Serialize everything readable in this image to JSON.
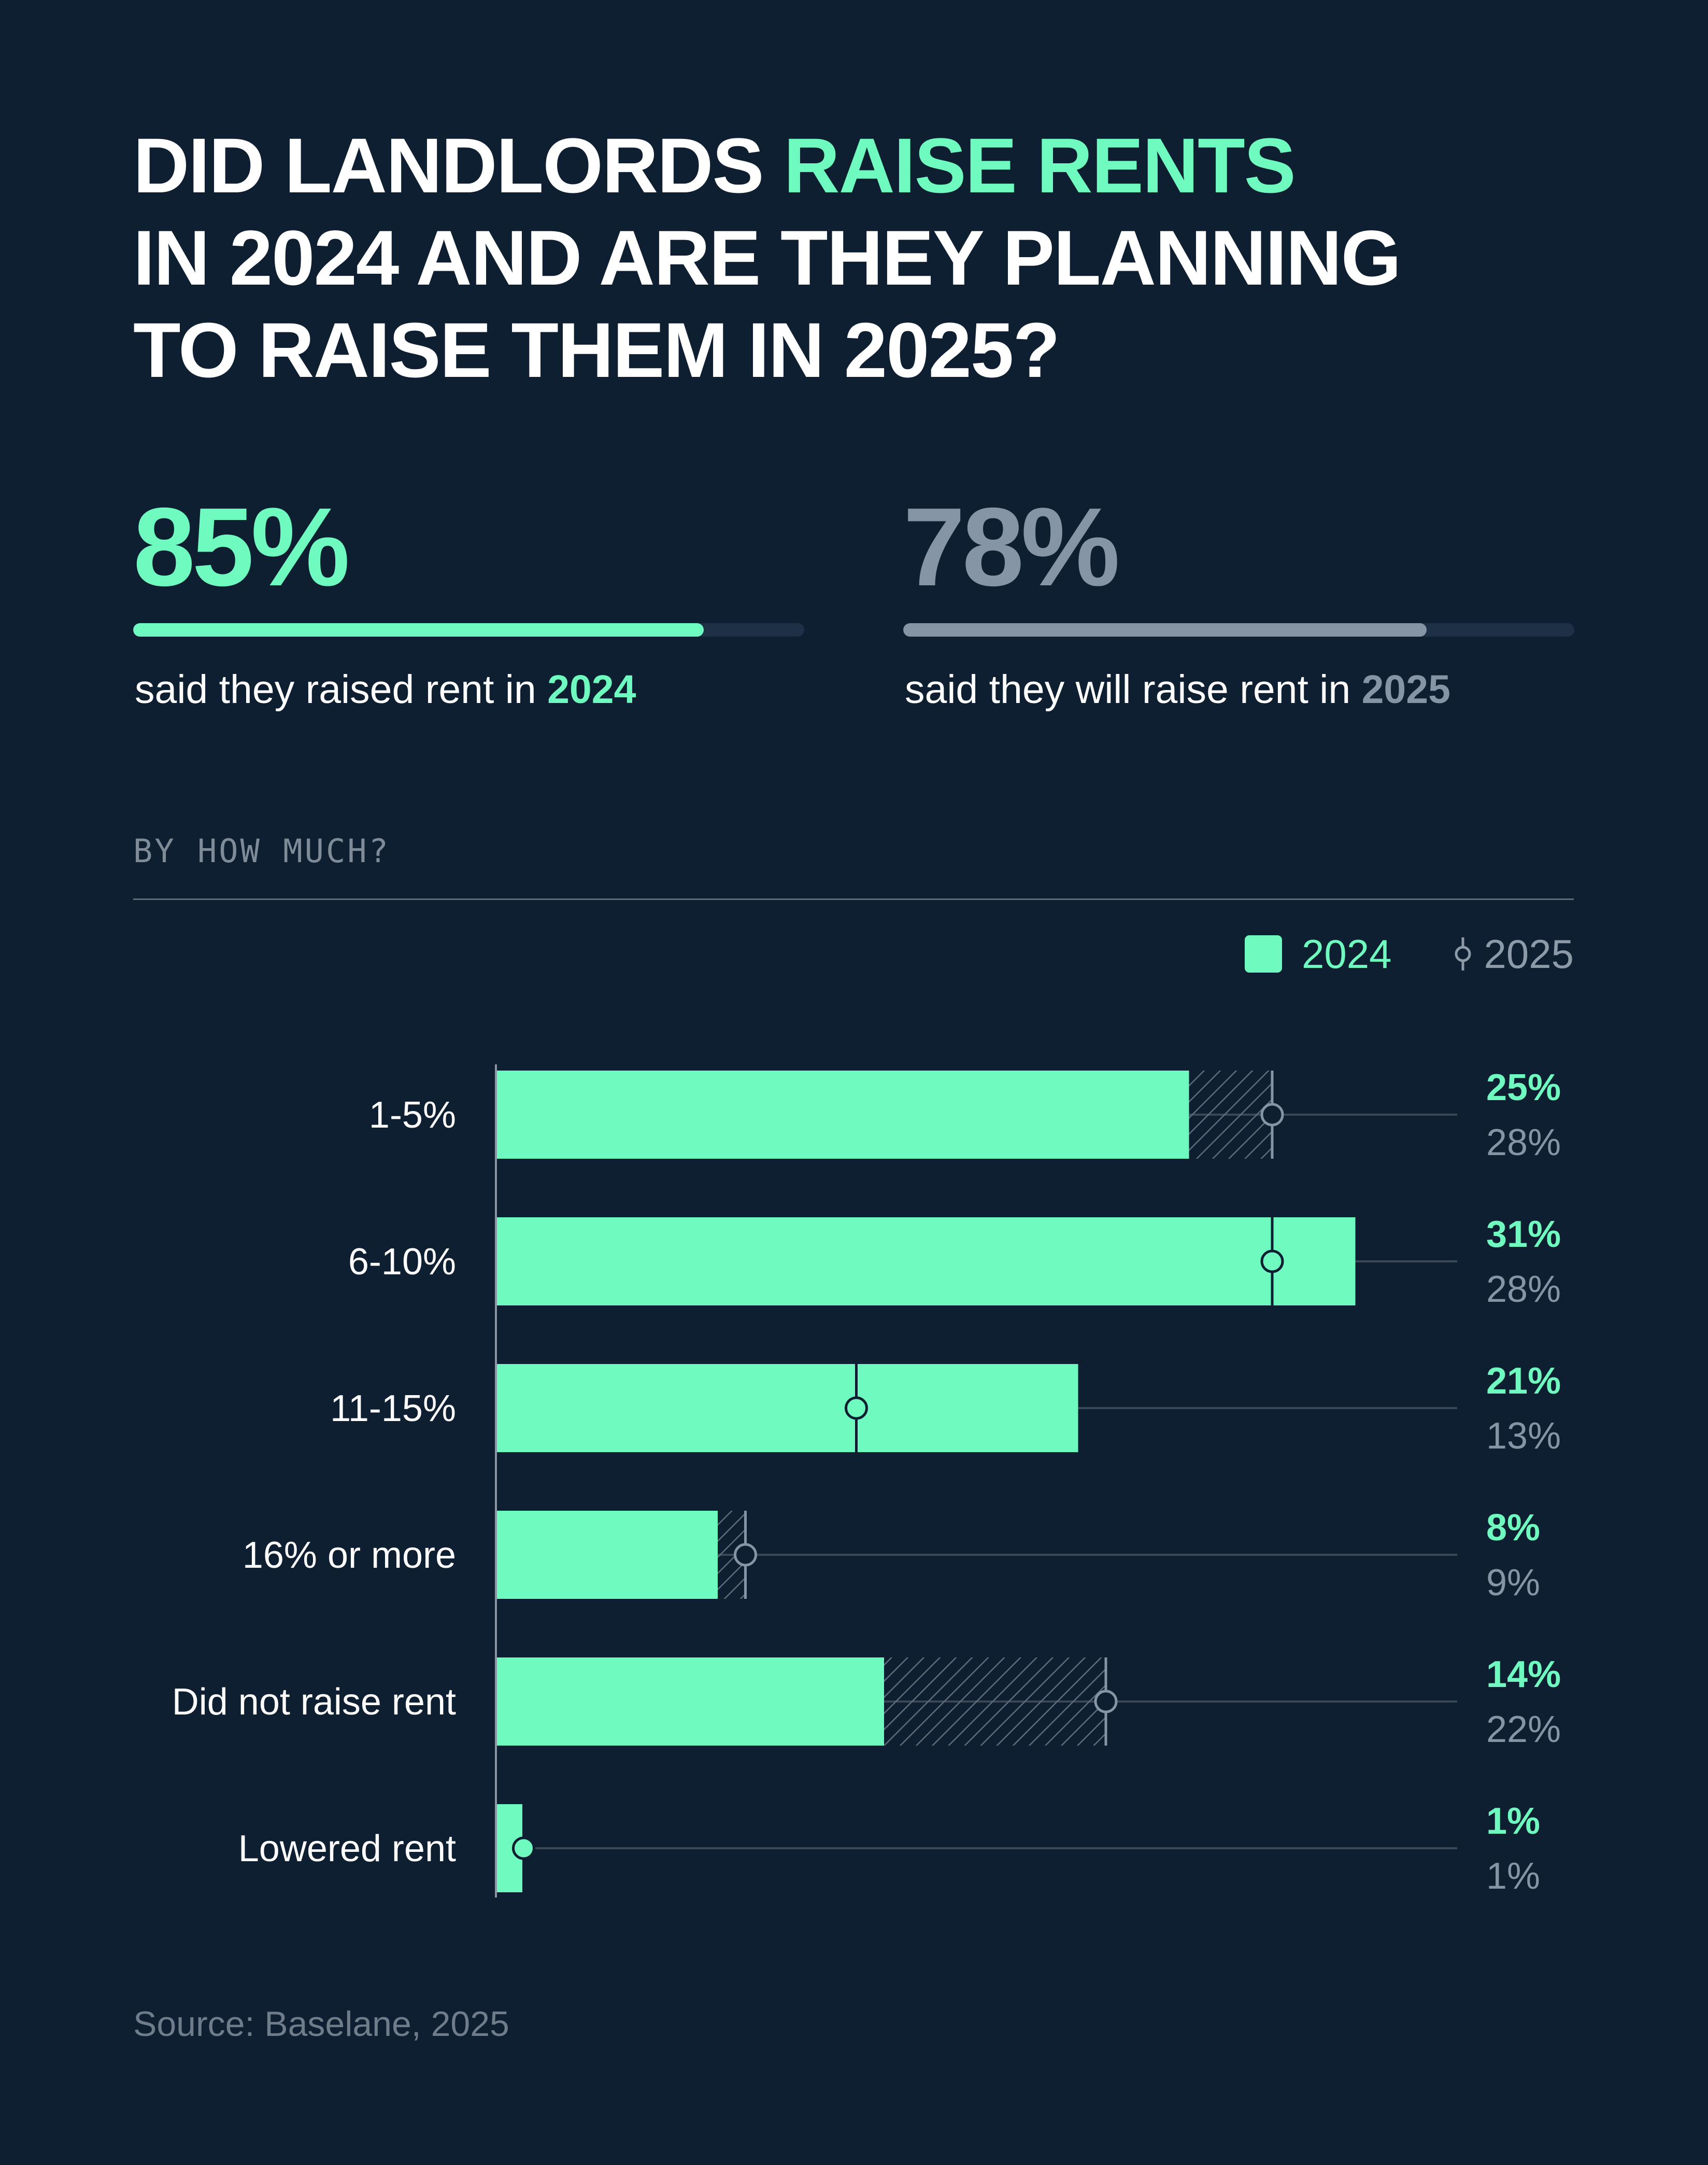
{
  "title": {
    "line1_prefix": "DID LANDLORDS ",
    "line1_accent": "RAISE RENTS",
    "line2": "IN 2024 AND ARE THEY PLANNING",
    "line3": "TO RAISE THEM IN 2025?"
  },
  "stats": {
    "left": {
      "value": "85%",
      "fraction": 0.85,
      "caption_prefix": "said they raised rent in ",
      "caption_year": "2024"
    },
    "right": {
      "value": "78%",
      "fraction": 0.78,
      "caption_prefix": "said they will raise rent in ",
      "caption_year": "2025"
    }
  },
  "section_label": "BY HOW MUCH?",
  "source": "Source: Baselane, 2025",
  "colors": {
    "accent": "#6ffbbf",
    "muted": "#8595a6",
    "background": "#0e1f32"
  },
  "chart_data": {
    "type": "bar",
    "orientation": "horizontal",
    "legend_position": "top-right",
    "categories": [
      "1-5%",
      "6-10%",
      "11-15%",
      "16% or more",
      "Did not raise rent",
      "Lowered rent"
    ],
    "series": [
      {
        "name": "2024",
        "marker": "bar",
        "values": [
          25,
          31,
          21,
          8,
          14,
          1
        ]
      },
      {
        "name": "2025",
        "marker": "lollipop",
        "values": [
          28,
          28,
          13,
          9,
          22,
          1
        ]
      }
    ],
    "value_labels_2024": [
      "25%",
      "31%",
      "21%",
      "8%",
      "14%",
      "1%"
    ],
    "value_labels_2025": [
      "28%",
      "28%",
      "13%",
      "9%",
      "22%",
      "1%"
    ],
    "xlim": [
      0,
      35
    ],
    "legend": {
      "label_2024": "2024",
      "label_2025": "2025"
    }
  }
}
